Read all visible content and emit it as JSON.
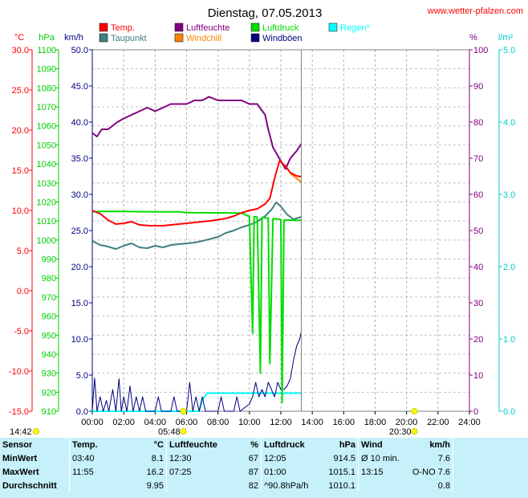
{
  "chart_data": {
    "type": "line",
    "title": "Dienstag, 07.05.2013",
    "source": "www.wetter-pfalzen.com",
    "axes": {
      "temp": {
        "unit": "°C",
        "min": -15,
        "max": 30,
        "step": 5,
        "color": "#ff0000"
      },
      "pressure": {
        "unit": "hPa",
        "min": 910,
        "max": 1100,
        "step": 10,
        "color": "#00cc00"
      },
      "wind": {
        "unit": "km/h",
        "min": 0,
        "max": 50,
        "step": 5,
        "color": "#000080"
      },
      "humidity": {
        "unit": "%",
        "min": 0,
        "max": 100,
        "step": 10,
        "color": "#800080"
      },
      "rain": {
        "unit": "l/m²",
        "min": 0,
        "max": 5,
        "step": 1,
        "color": "#00cccc"
      }
    },
    "x_ticks": [
      "00:00",
      "02:00",
      "04:00",
      "06:00",
      "08:00",
      "10:00",
      "12:00",
      "14:00",
      "16:00",
      "18:00",
      "20:00",
      "22:00",
      "24:00"
    ],
    "x_range_hours": [
      0,
      24
    ],
    "now_hour": 13.3,
    "legend": [
      {
        "name": "Temp.",
        "color": "#ff0000"
      },
      {
        "name": "Luftfeuchte",
        "color": "#800080"
      },
      {
        "name": "Luftdruck",
        "color": "#00dd00"
      },
      {
        "name": "Regen*",
        "color": "#00ffff"
      },
      {
        "name": "Taupunkt",
        "color": "#408080"
      },
      {
        "name": "Windchill",
        "color": "#ff8000"
      },
      {
        "name": "Windböen",
        "color": "#000080"
      }
    ],
    "sun": {
      "sunshine": "14:42",
      "sunrise": "05:48",
      "sunset": "20:30",
      "sunrise_hour": 5.8,
      "sunset_hour": 20.5
    },
    "series": [
      {
        "name": "Temp.",
        "axis": "temp",
        "color": "#ff0000",
        "points": [
          [
            0,
            10.0
          ],
          [
            0.5,
            9.6
          ],
          [
            1.0,
            8.8
          ],
          [
            1.5,
            8.3
          ],
          [
            2.0,
            8.4
          ],
          [
            2.5,
            8.6
          ],
          [
            3.0,
            8.2
          ],
          [
            3.67,
            8.1
          ],
          [
            4.5,
            8.1
          ],
          [
            5.5,
            8.3
          ],
          [
            6.5,
            8.5
          ],
          [
            7.5,
            8.7
          ],
          [
            8.5,
            9.0
          ],
          [
            9.0,
            9.3
          ],
          [
            9.5,
            9.7
          ],
          [
            10.0,
            10.0
          ],
          [
            10.5,
            10.2
          ],
          [
            11.0,
            10.8
          ],
          [
            11.3,
            11.5
          ],
          [
            11.6,
            14.0
          ],
          [
            11.92,
            16.2
          ],
          [
            12.3,
            15.5
          ],
          [
            12.6,
            14.7
          ],
          [
            13.0,
            14.3
          ],
          [
            13.3,
            14.2
          ]
        ]
      },
      {
        "name": "Windchill",
        "axis": "temp",
        "color": "#ff8000",
        "points": [
          [
            12.6,
            14.6
          ],
          [
            13.0,
            14.0
          ],
          [
            13.3,
            13.5
          ]
        ]
      },
      {
        "name": "Taupunkt",
        "axis": "temp",
        "color": "#408080",
        "points": [
          [
            0,
            6.2
          ],
          [
            0.5,
            5.7
          ],
          [
            1.0,
            5.5
          ],
          [
            1.5,
            5.2
          ],
          [
            2.0,
            5.6
          ],
          [
            2.5,
            5.9
          ],
          [
            3.0,
            5.4
          ],
          [
            3.5,
            5.3
          ],
          [
            4.0,
            5.6
          ],
          [
            4.5,
            5.4
          ],
          [
            5.0,
            5.7
          ],
          [
            6.0,
            5.9
          ],
          [
            6.5,
            6.0
          ],
          [
            7.0,
            6.2
          ],
          [
            8.0,
            6.7
          ],
          [
            8.5,
            7.2
          ],
          [
            9.0,
            7.5
          ],
          [
            9.5,
            7.9
          ],
          [
            10.0,
            8.2
          ],
          [
            10.5,
            8.6
          ],
          [
            11.0,
            9.3
          ],
          [
            11.4,
            10.1
          ],
          [
            11.7,
            11.0
          ],
          [
            12.0,
            10.5
          ],
          [
            12.4,
            9.5
          ],
          [
            12.8,
            8.9
          ],
          [
            13.3,
            9.2
          ]
        ]
      },
      {
        "name": "Luftfeuchte",
        "axis": "humidity",
        "color": "#800080",
        "points": [
          [
            0,
            77
          ],
          [
            0.3,
            76
          ],
          [
            0.6,
            78
          ],
          [
            1.0,
            78
          ],
          [
            1.3,
            79
          ],
          [
            1.6,
            80
          ],
          [
            2.0,
            81
          ],
          [
            2.5,
            82
          ],
          [
            3.0,
            83
          ],
          [
            3.5,
            84
          ],
          [
            4.0,
            83
          ],
          [
            4.5,
            84
          ],
          [
            5.0,
            85
          ],
          [
            5.5,
            85
          ],
          [
            6.0,
            85
          ],
          [
            6.5,
            86
          ],
          [
            7.0,
            86
          ],
          [
            7.42,
            87
          ],
          [
            8.0,
            86
          ],
          [
            8.5,
            86
          ],
          [
            9.0,
            86
          ],
          [
            9.5,
            86
          ],
          [
            10.0,
            85
          ],
          [
            10.5,
            85
          ],
          [
            11.0,
            82
          ],
          [
            11.2,
            78
          ],
          [
            11.5,
            73
          ],
          [
            11.9,
            70
          ],
          [
            12.3,
            67
          ],
          [
            12.6,
            70
          ],
          [
            13.0,
            72
          ],
          [
            13.3,
            74
          ]
        ]
      },
      {
        "name": "Luftdruck",
        "axis": "pressure",
        "color": "#00dd00",
        "points": [
          [
            0,
            1014.8
          ],
          [
            0.7,
            1015.1
          ],
          [
            2,
            1015.0
          ],
          [
            4,
            1014.8
          ],
          [
            5.5,
            1014.8
          ],
          [
            6,
            1014.4
          ],
          [
            9.5,
            1014.2
          ],
          [
            10.0,
            1012.3
          ],
          [
            10.2,
            951
          ],
          [
            10.3,
            1012.3
          ],
          [
            10.5,
            1012.0
          ],
          [
            10.7,
            930
          ],
          [
            10.8,
            1011.8
          ],
          [
            11.2,
            1011.5
          ],
          [
            11.3,
            935
          ],
          [
            11.5,
            1011.2
          ],
          [
            11.8,
            1011.0
          ],
          [
            12.0,
            1010.7
          ],
          [
            12.08,
            914.5
          ],
          [
            12.2,
            1010.5
          ],
          [
            12.6,
            1010.5
          ],
          [
            13.0,
            1010.4
          ],
          [
            13.3,
            1010.4
          ]
        ]
      },
      {
        "name": "Regen*",
        "axis": "rain",
        "color": "#00ffff",
        "points": [
          [
            0,
            0
          ],
          [
            6.8,
            0
          ],
          [
            7.0,
            0.15
          ],
          [
            7.3,
            0.25
          ],
          [
            13.3,
            0.25
          ]
        ]
      },
      {
        "name": "Windböen",
        "axis": "wind",
        "color": "#000080",
        "style": "gust",
        "points": [
          [
            0,
            0
          ],
          [
            0.15,
            4.6
          ],
          [
            0.3,
            0
          ],
          [
            0.5,
            2
          ],
          [
            0.7,
            0
          ],
          [
            0.9,
            1.5
          ],
          [
            1.05,
            0
          ],
          [
            1.3,
            3
          ],
          [
            1.5,
            0
          ],
          [
            1.7,
            4.5
          ],
          [
            1.85,
            0
          ],
          [
            2.0,
            2
          ],
          [
            2.2,
            0
          ],
          [
            2.4,
            3.5
          ],
          [
            2.6,
            0
          ],
          [
            2.8,
            2
          ],
          [
            3.0,
            0
          ],
          [
            3.2,
            2
          ],
          [
            3.4,
            0
          ],
          [
            4.0,
            0
          ],
          [
            4.2,
            2
          ],
          [
            4.4,
            0
          ],
          [
            5.0,
            0
          ],
          [
            5.2,
            2
          ],
          [
            5.4,
            0
          ],
          [
            6.0,
            0
          ],
          [
            6.2,
            4
          ],
          [
            6.4,
            0
          ],
          [
            6.6,
            2
          ],
          [
            6.8,
            0
          ],
          [
            7.0,
            2
          ],
          [
            7.2,
            0
          ],
          [
            8.0,
            0
          ],
          [
            8.2,
            2
          ],
          [
            8.4,
            0
          ],
          [
            9.0,
            0
          ],
          [
            9.2,
            2
          ],
          [
            9.4,
            0
          ],
          [
            10.0,
            1
          ],
          [
            10.2,
            2
          ],
          [
            10.4,
            4
          ],
          [
            10.6,
            2
          ],
          [
            10.8,
            3
          ],
          [
            11.0,
            2
          ],
          [
            11.2,
            4
          ],
          [
            11.4,
            3
          ],
          [
            11.6,
            2
          ],
          [
            11.8,
            4
          ],
          [
            12.0,
            3
          ],
          [
            12.2,
            3
          ],
          [
            12.4,
            3.5
          ],
          [
            12.6,
            4.5
          ],
          [
            12.8,
            7
          ],
          [
            13.0,
            9
          ],
          [
            13.2,
            10
          ],
          [
            13.3,
            11
          ]
        ]
      }
    ]
  },
  "stats": {
    "header": {
      "sensor": "Sensor",
      "temp": "Temp.",
      "temp_unit": "°C",
      "hum": "Luftfeuchte",
      "hum_unit": "%",
      "press": "Luftdruck",
      "press_unit": "hPa",
      "wind": "Wind",
      "wind_unit": "km/h"
    },
    "rows": [
      {
        "label": "MinWert",
        "temp_time": "03:40",
        "temp_val": "8.1",
        "hum_time": "12:30",
        "hum_val": "67",
        "press_time": "12:05",
        "press_val": "914.5",
        "wind_time": "Ø 10 min.",
        "wind_val": "7.6"
      },
      {
        "label": "MaxWert",
        "temp_time": "11:55",
        "temp_val": "16.2",
        "hum_time": "07:25",
        "hum_val": "87",
        "press_time": "01:00",
        "press_val": "1015.1",
        "wind_time": "13:15",
        "wind_val": "O-NO 7.6"
      },
      {
        "label": "Durchschnitt",
        "temp_time": "",
        "temp_val": "9.95",
        "hum_time": "",
        "hum_val": "82",
        "press_time": "^90.8hPa/h",
        "press_val": "1010.1",
        "wind_time": "",
        "wind_val": "0.8"
      }
    ]
  }
}
